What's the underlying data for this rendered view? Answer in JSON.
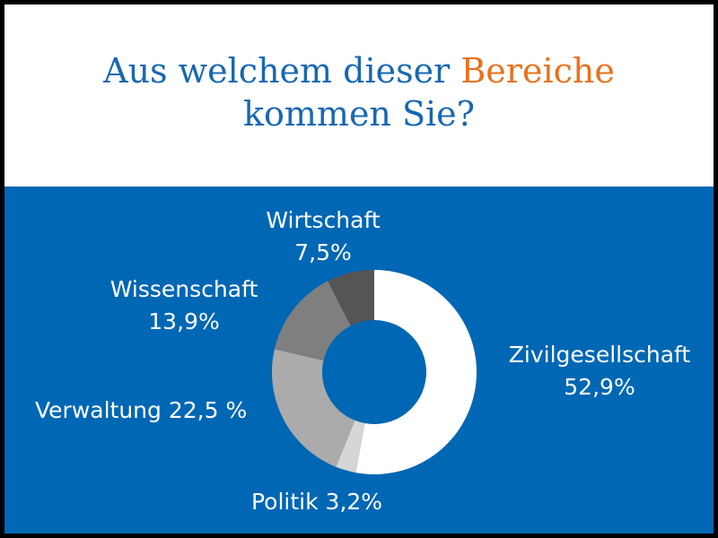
{
  "title": {
    "part1": "Aus welchem dieser ",
    "accent": "Bereiche",
    "line2": "kommen Sie?"
  },
  "colors": {
    "title": "#1768b4",
    "accent": "#e8721c",
    "panel": "#0067b4",
    "text": "#ffffff"
  },
  "chart_data": {
    "type": "pie",
    "donut": true,
    "start": "12 o'clock, clockwise",
    "title": "Aus welchem dieser Bereiche kommen Sie?",
    "slices": [
      {
        "name": "Zivilgesellschaft",
        "value": 52.9,
        "label_line1": "Zivilgesellschaft",
        "label_line2": "52,9%",
        "color": "#ffffff"
      },
      {
        "name": "Politik",
        "value": 3.2,
        "label_line1": "Politik 3,2%",
        "color": "#d6d6d6"
      },
      {
        "name": "Verwaltung",
        "value": 22.5,
        "label_line1": "Verwaltung 22,5 %",
        "color": "#ababab"
      },
      {
        "name": "Wissenschaft",
        "value": 13.9,
        "label_line1": "Wissenschaft",
        "label_line2": "13,9%",
        "color": "#7f7f7f"
      },
      {
        "name": "Wirtschaft",
        "value": 7.5,
        "label_line1": "Wirtschaft",
        "label_line2": "7,5%",
        "color": "#555555"
      }
    ]
  }
}
